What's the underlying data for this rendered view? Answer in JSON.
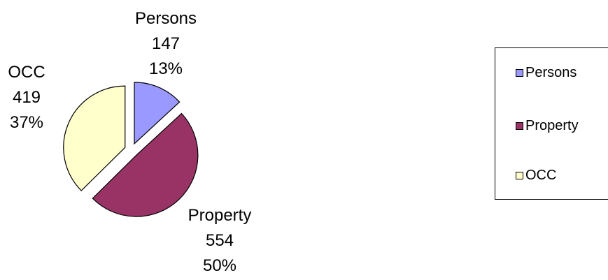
{
  "chart_data": {
    "type": "pie",
    "categories": [
      "Persons",
      "Property",
      "OCC"
    ],
    "values": [
      147,
      554,
      419
    ],
    "percent_labels": [
      "13%",
      "50%",
      "37%"
    ],
    "colors": [
      "#9999FF",
      "#993366",
      "#FFFFCC"
    ],
    "exploded": true,
    "legend_position": "right",
    "title": ""
  },
  "legend": {
    "items": [
      {
        "label": "Persons",
        "color": "#9999FF"
      },
      {
        "label": "Property",
        "color": "#993366"
      },
      {
        "label": "OCC",
        "color": "#FFFFCC"
      }
    ]
  }
}
